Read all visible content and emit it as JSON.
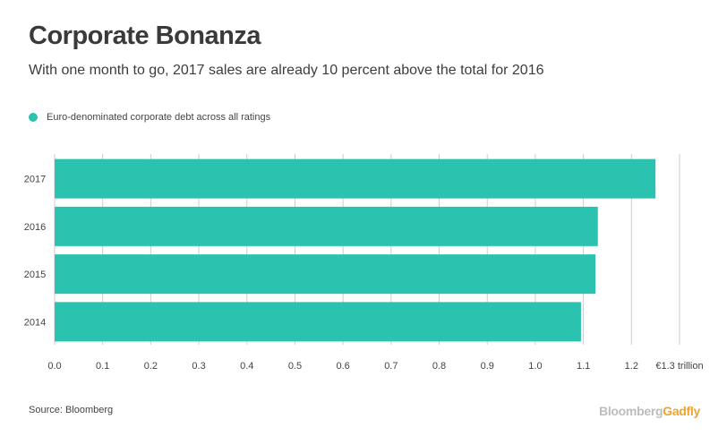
{
  "header": {
    "title": "Corporate Bonanza",
    "subtitle": "With one month to go, 2017 sales are already 10 percent above the total for 2016"
  },
  "legend": {
    "label": "Euro-denominated corporate debt across all ratings"
  },
  "colors": {
    "bar": "#2cc2b0",
    "grid": "#cccccc",
    "axis_text": "#444444"
  },
  "chart_data": {
    "type": "bar",
    "orientation": "horizontal",
    "title": "Corporate Bonanza",
    "subtitle": "With one month to go, 2017 sales are already 10 percent above the total for 2016",
    "categories": [
      "2017",
      "2016",
      "2015",
      "2014"
    ],
    "series": [
      {
        "name": "Euro-denominated corporate debt across all ratings",
        "values": [
          1.25,
          1.13,
          1.125,
          1.095
        ]
      }
    ],
    "xlim": [
      0,
      1.3
    ],
    "xticks": [
      "0.0",
      "0.1",
      "0.2",
      "0.3",
      "0.4",
      "0.5",
      "0.6",
      "0.7",
      "0.8",
      "0.9",
      "1.0",
      "1.1",
      "1.2",
      "€1.3 trillion"
    ],
    "xtick_values": [
      0,
      0.1,
      0.2,
      0.3,
      0.4,
      0.5,
      0.6,
      0.7,
      0.8,
      0.9,
      1.0,
      1.1,
      1.2,
      1.3
    ],
    "xlabel": "",
    "ylabel": "",
    "grid": true
  },
  "footer": {
    "source": "Source: Bloomberg",
    "brand_main": "Bloomberg",
    "brand_accent": "Gadfly"
  }
}
